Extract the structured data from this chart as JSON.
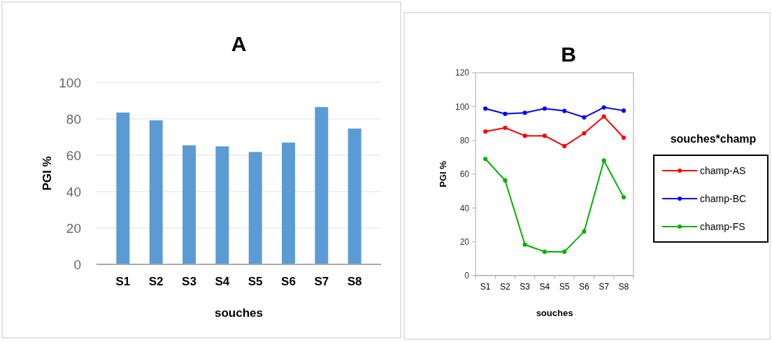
{
  "chart_data": [
    {
      "type": "bar",
      "title": "A",
      "xlabel": "souches",
      "ylabel": "PGI %",
      "categories": [
        "S1",
        "S2",
        "S3",
        "S4",
        "S5",
        "S6",
        "S7",
        "S8"
      ],
      "values": [
        83.5,
        79.2,
        65.5,
        64.9,
        61.8,
        67,
        86.5,
        74.7
      ],
      "color": "#5b9bd5",
      "ylim": [
        0,
        100
      ],
      "yticks": [
        0,
        20,
        40,
        60,
        80,
        100
      ],
      "grid": "y"
    },
    {
      "type": "line",
      "title": "B",
      "xlabel": "souches",
      "ylabel": "PGI %",
      "legend_title": "souches*champ",
      "legend": "right",
      "marker": "circle",
      "categories": [
        "S1",
        "S2",
        "S3",
        "S4",
        "S5",
        "S6",
        "S7",
        "S8"
      ],
      "ylim": [
        0,
        120
      ],
      "yticks": [
        0,
        20,
        40,
        60,
        80,
        100,
        120
      ],
      "series": [
        {
          "name": "champ-AS",
          "color": "#ff0000",
          "values": [
            85.2,
            87.4,
            82.7,
            82.7,
            76.6,
            84.2,
            94.1,
            81.6
          ]
        },
        {
          "name": "champ-BC",
          "color": "#0000ff",
          "values": [
            98.8,
            95.7,
            96.3,
            98.8,
            97.4,
            93.6,
            99.5,
            97.6
          ]
        },
        {
          "name": "champ-FS",
          "color": "#00b000",
          "values": [
            69,
            56.3,
            18.3,
            14.1,
            14.1,
            26.1,
            68,
            46.3
          ]
        }
      ]
    }
  ]
}
